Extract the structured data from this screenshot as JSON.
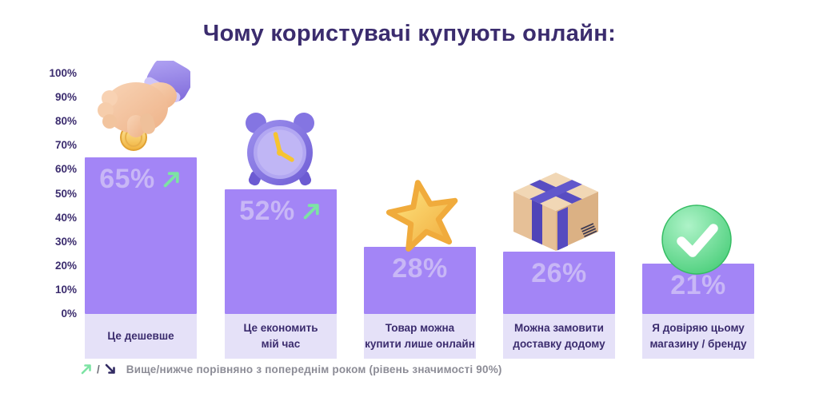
{
  "title": "Чому користувачі купують онлайн:",
  "colors": {
    "deep": "#3b2c6e",
    "bar": "#a385f6",
    "bar_value": "#c8b7f6",
    "label_bg": "#e5e1f8",
    "arrow_up": "#7de3a4",
    "arrow_down": "#322b63",
    "footnote_gray": "#8c8c96"
  },
  "y_axis": {
    "ticks": [
      "100%",
      "90%",
      "80%",
      "70%",
      "60%",
      "50%",
      "40%",
      "30%",
      "20%",
      "10%",
      "0%"
    ]
  },
  "chart_data": {
    "type": "bar",
    "title": "Чому користувачі купують онлайн:",
    "categories": [
      "Це дешевше",
      "Це економить\nмій час",
      "Товар можна\nкупити лише онлайн",
      "Можна замовити\nдоставку додому",
      "Я довіряю цьому\nмагазину / бренду"
    ],
    "values": [
      65,
      52,
      28,
      26,
      21
    ],
    "value_labels": [
      "65%",
      "52%",
      "28%",
      "26%",
      "21%"
    ],
    "trend_vs_previous_year": [
      "up",
      "up",
      null,
      null,
      null
    ],
    "icons": [
      "hand-dropping-coin",
      "alarm-clock",
      "star",
      "package-box",
      "check-mark"
    ],
    "xlabel": "",
    "ylabel": "",
    "ylim": [
      0,
      100
    ],
    "grid": false,
    "legend": "none"
  },
  "footnote": {
    "up_symbol": "↗",
    "separator": "/",
    "down_symbol": "↘",
    "text": "Вище/нижче порівняно з попереднім роком (рівень значимості 90%)"
  }
}
